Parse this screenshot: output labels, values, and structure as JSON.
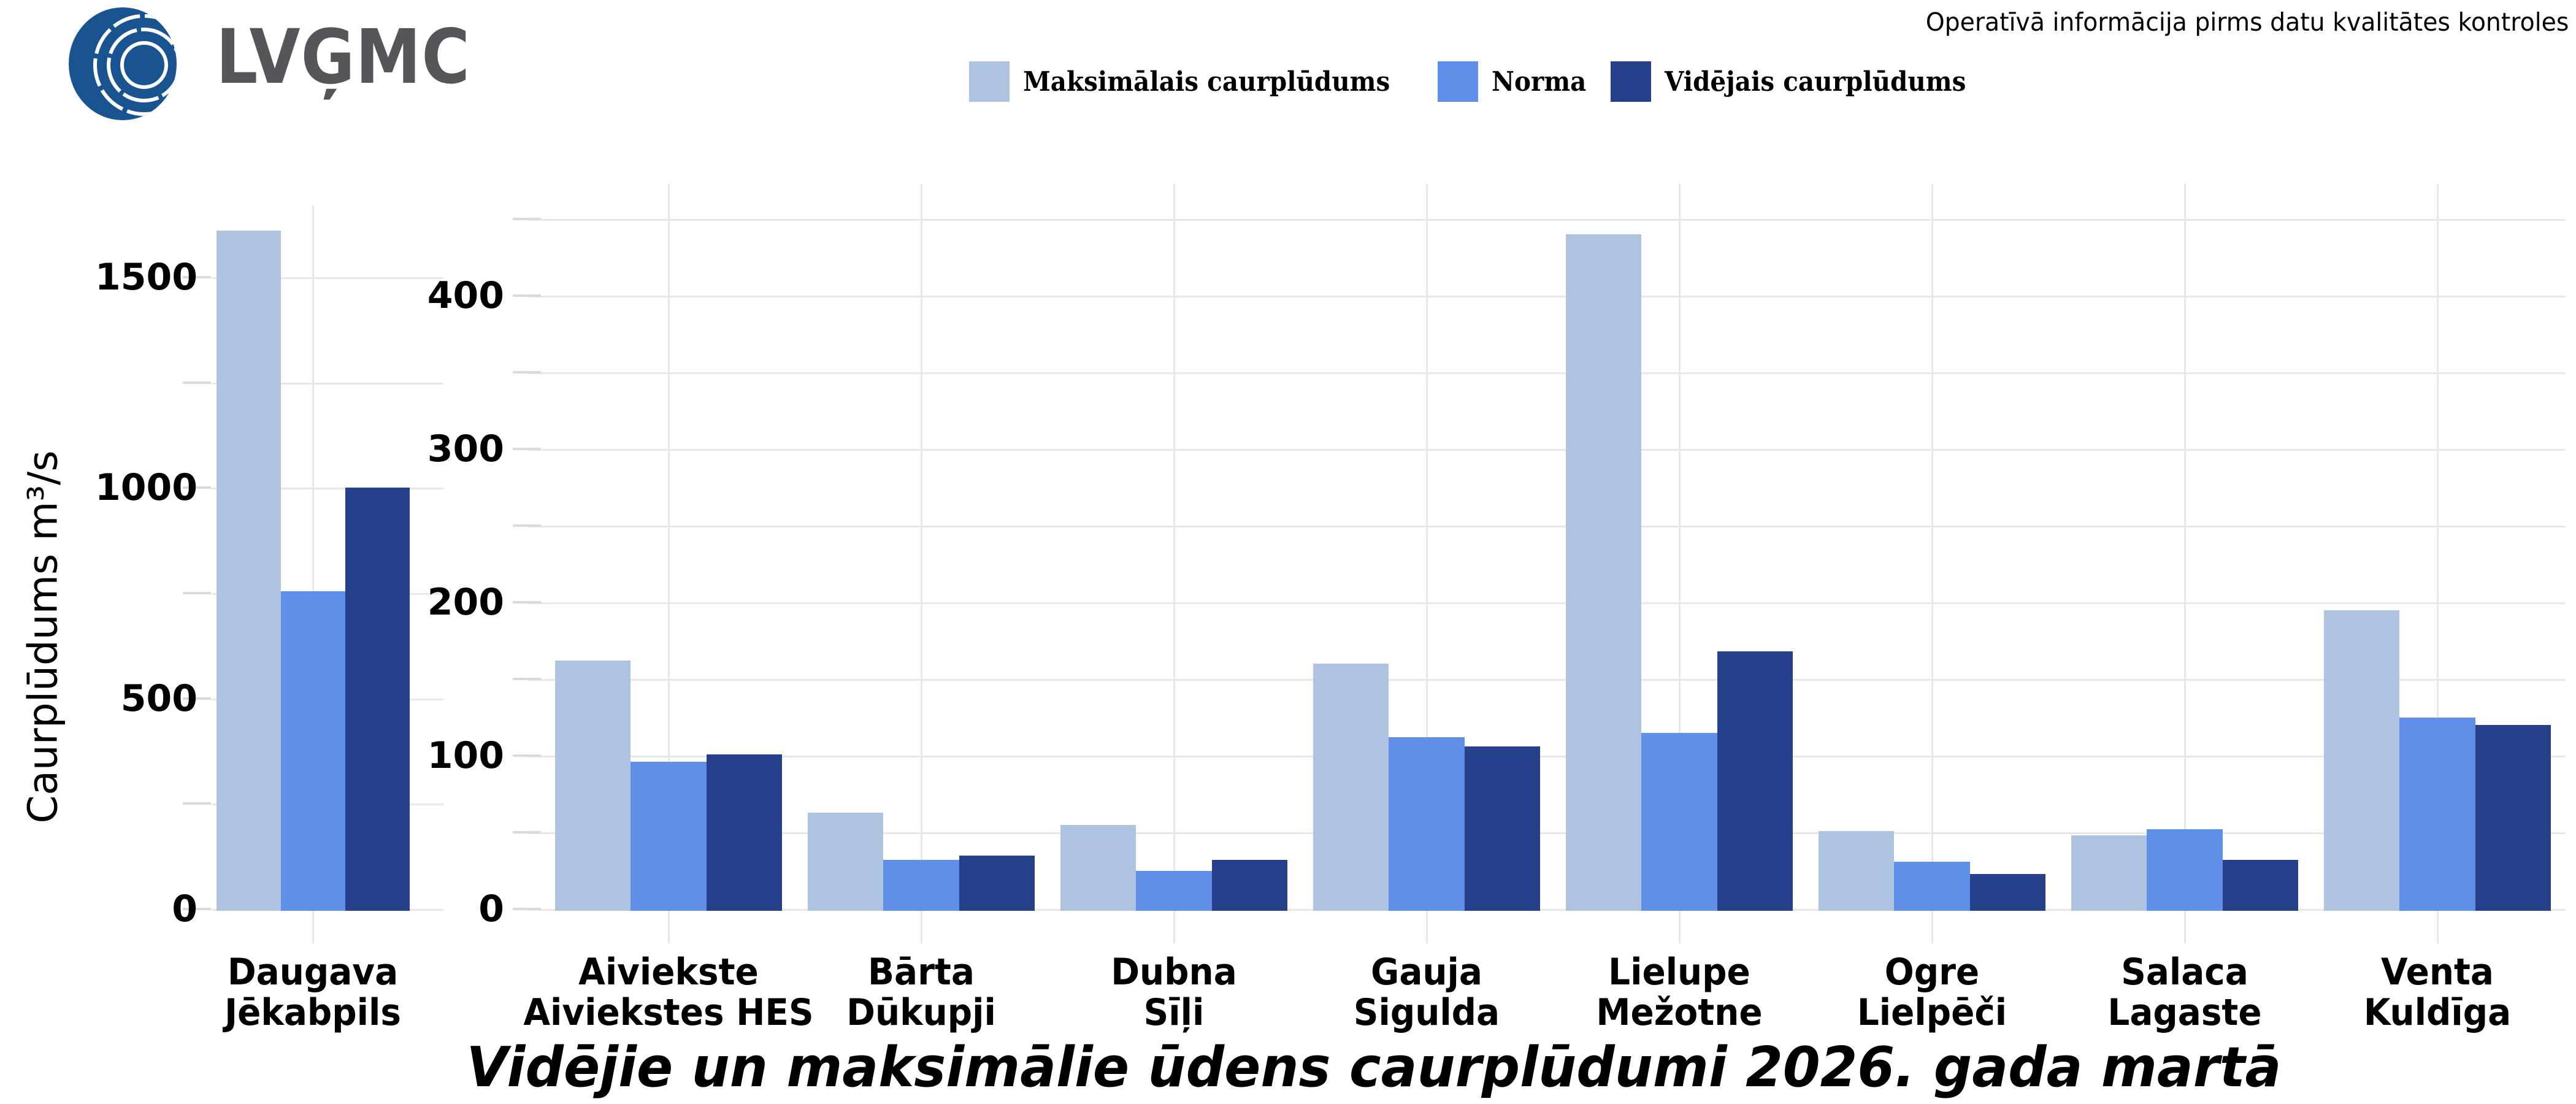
{
  "header": {
    "logo_text": "LVĢMC",
    "note": "Operatīvā informācija pirms datu kvalitātes kontroles"
  },
  "chart_data": {
    "type": "bar",
    "title": "Vidējie un maksimālie ūdens caurplūdumi 2026. gada martā",
    "ylabel": "Caurplūdums  m³/s",
    "legend_position": "top",
    "grid": true,
    "categories": [
      [
        "Daugava",
        "Jēkabpils"
      ],
      [
        "Aiviekste",
        "Aiviekstes HES"
      ],
      [
        "Bārta",
        "Dūkupji"
      ],
      [
        "Dubna",
        "Sīļi"
      ],
      [
        "Gauja",
        "Sigulda"
      ],
      [
        "Lielupe",
        "Mežotne"
      ],
      [
        "Ogre",
        "Lielpēči"
      ],
      [
        "Salaca",
        "Lagaste"
      ],
      [
        "Venta",
        "Kuldīga"
      ]
    ],
    "series": [
      {
        "name": "Maksimālais caurplūdums",
        "color": "#AEC3E0",
        "values": [
          1610,
          162,
          63,
          55,
          160,
          440,
          51,
          48,
          195
        ]
      },
      {
        "name": "Norma",
        "color": "#5F8FE8",
        "values": [
          755,
          96,
          32,
          25,
          112,
          115,
          31,
          52,
          125
        ]
      },
      {
        "name": "Vidējais caurplūdums",
        "color": "#26408C",
        "values": [
          1000,
          101,
          35,
          32,
          106,
          168,
          23,
          32,
          120
        ]
      }
    ],
    "panels": [
      {
        "name": "left",
        "categories": [
          0
        ],
        "yticks": [
          0,
          500,
          1000,
          1500
        ],
        "minor_step": 250,
        "ylim": [
          0,
          1680
        ]
      },
      {
        "name": "right",
        "categories": [
          1,
          2,
          3,
          4,
          5,
          6,
          7,
          8
        ],
        "yticks": [
          0,
          100,
          200,
          300,
          400
        ],
        "minor_step": 50,
        "ylim": [
          0,
          470
        ]
      }
    ]
  },
  "colors": {
    "background": "#FFFFFF",
    "gridline": "#E8E8E8",
    "tick": "#DBDBDB",
    "text": "#000000",
    "logo_blue": "#1A5490",
    "logo_text_gray": "#54565A"
  }
}
